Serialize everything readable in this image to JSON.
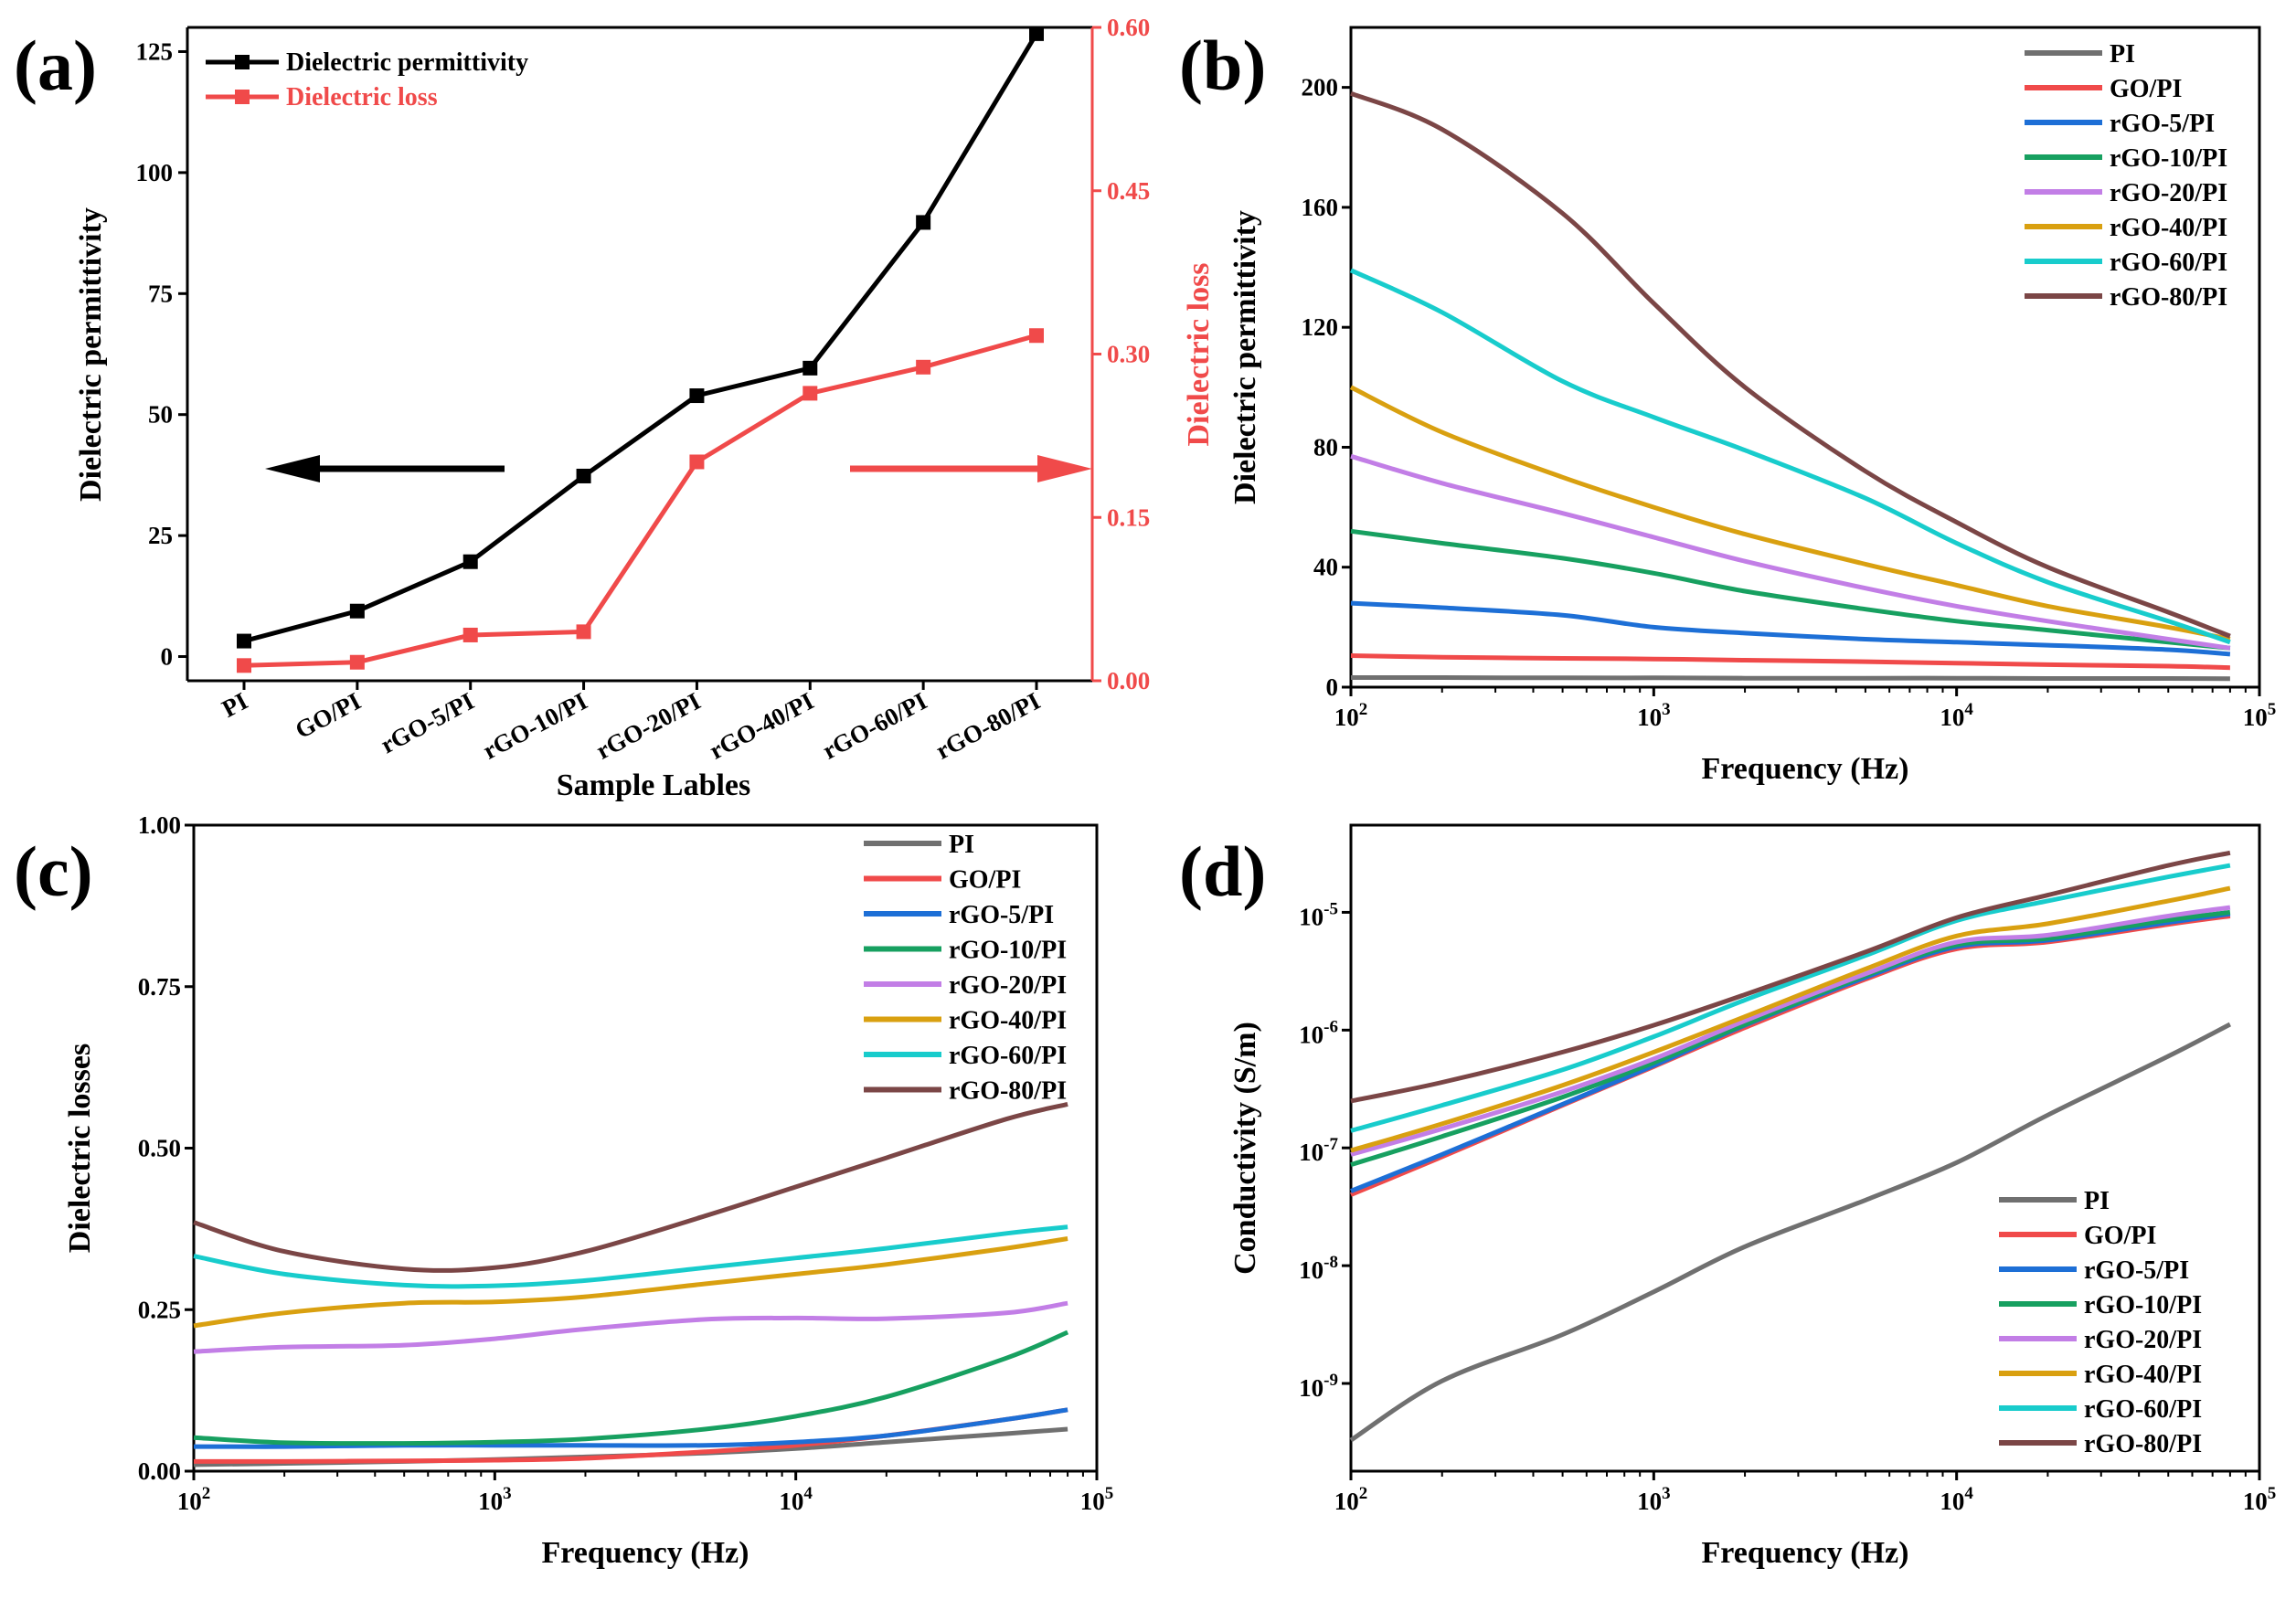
{
  "colors": {
    "PI": "#707070",
    "GO/PI": "#f04a4a",
    "rGO-5/PI": "#1d6fd6",
    "rGO-10/PI": "#17a060",
    "rGO-20/PI": "#c27ee6",
    "rGO-40/PI": "#d9a010",
    "rGO-60/PI": "#18cccc",
    "rGO-80/PI": "#7b4646",
    "black": "#000000",
    "red": "#f04a4a"
  },
  "chart_data": [
    {
      "panel": "(a)",
      "type": "line",
      "categories": [
        "PI",
        "GO/PI",
        "rGO-5/PI",
        "rGO-10/PI",
        "rGO-20/PI",
        "rGO-40/PI",
        "rGO-60/PI",
        "rGO-80/PI"
      ],
      "xlabel": "Sample Lables",
      "ylabel": "Dielectric permittivity",
      "ylabel_right": "Dielectric loss",
      "ylim": [
        -5,
        130
      ],
      "ylim_right": [
        0,
        0.6
      ],
      "yticks": [
        "0",
        "25",
        "50",
        "75",
        "100",
        "125"
      ],
      "yticks_right": [
        "0.00",
        "0.15",
        "0.30",
        "0.45",
        "0.60"
      ],
      "legend": "top-left",
      "series": [
        {
          "name": "Dielectric permittivity",
          "axis": "left",
          "values": [
            3.2,
            9.4,
            19.6,
            37.3,
            53.9,
            59.6,
            89.7,
            128.7
          ]
        },
        {
          "name": "Dielectric loss",
          "axis": "right",
          "values": [
            0.014,
            0.017,
            0.042,
            0.045,
            0.201,
            0.264,
            0.288,
            0.317
          ]
        }
      ]
    },
    {
      "panel": "(b)",
      "type": "line",
      "xscale": "log",
      "xlim": [
        100,
        100000
      ],
      "xticks": [
        {
          "base": "10",
          "exp": "2"
        },
        {
          "base": "10",
          "exp": "3"
        },
        {
          "base": "10",
          "exp": "4"
        },
        {
          "base": "10",
          "exp": "5"
        }
      ],
      "ylim": [
        0,
        220
      ],
      "yticks": [
        "0",
        "40",
        "80",
        "120",
        "160",
        "200"
      ],
      "xlabel": "Frequency (Hz)",
      "ylabel": "Dielectric permittivity",
      "legend": "top-right",
      "x": [
        100,
        200,
        500,
        1000,
        2000,
        5000,
        10000,
        20000,
        50000,
        80000
      ],
      "series": [
        {
          "name": "PI",
          "values": [
            3.2,
            3.2,
            3.1,
            3.1,
            3.0,
            3.0,
            3.0,
            2.9,
            2.9,
            2.8
          ]
        },
        {
          "name": "GO/PI",
          "values": [
            10.5,
            10.0,
            9.6,
            9.4,
            9.0,
            8.5,
            8.0,
            7.5,
            7.0,
            6.5
          ]
        },
        {
          "name": "rGO-5/PI",
          "values": [
            28,
            26.5,
            24,
            20,
            18,
            16,
            15,
            14,
            12.5,
            11
          ]
        },
        {
          "name": "rGO-10/PI",
          "values": [
            52,
            48,
            43,
            38,
            32,
            26,
            22,
            19,
            15,
            13
          ]
        },
        {
          "name": "rGO-20/PI",
          "values": [
            77,
            68,
            58,
            50,
            42,
            33,
            27,
            22,
            16,
            13
          ]
        },
        {
          "name": "rGO-40/PI",
          "values": [
            100,
            85,
            70,
            60,
            51,
            41,
            34,
            27,
            20,
            16
          ]
        },
        {
          "name": "rGO-60/PI",
          "values": [
            139,
            125,
            102,
            90,
            79,
            63,
            48,
            35,
            22,
            15
          ]
        },
        {
          "name": "rGO-80/PI",
          "values": [
            198,
            186,
            158,
            128,
            100,
            72,
            55,
            40,
            25,
            17
          ]
        }
      ]
    },
    {
      "panel": "(c)",
      "type": "line",
      "xscale": "log",
      "xlim": [
        100,
        100000
      ],
      "xticks": [
        {
          "base": "10",
          "exp": "2"
        },
        {
          "base": "10",
          "exp": "3"
        },
        {
          "base": "10",
          "exp": "4"
        },
        {
          "base": "10",
          "exp": "5"
        }
      ],
      "ylim": [
        0,
        1.0
      ],
      "yticks": [
        "0.00",
        "0.25",
        "0.50",
        "0.75",
        "1.00"
      ],
      "xlabel": "Frequency (Hz)",
      "ylabel": "Dielectric losses",
      "legend": "top-right",
      "x": [
        100,
        200,
        500,
        1000,
        2000,
        5000,
        10000,
        20000,
        50000,
        80000
      ],
      "series": [
        {
          "name": "PI",
          "values": [
            0.01,
            0.012,
            0.015,
            0.018,
            0.022,
            0.028,
            0.035,
            0.045,
            0.058,
            0.065
          ]
        },
        {
          "name": "GO/PI",
          "values": [
            0.015,
            0.015,
            0.016,
            0.017,
            0.02,
            0.03,
            0.04,
            0.055,
            0.08,
            0.095
          ]
        },
        {
          "name": "rGO-5/PI",
          "values": [
            0.038,
            0.038,
            0.04,
            0.04,
            0.04,
            0.04,
            0.045,
            0.055,
            0.08,
            0.095
          ]
        },
        {
          "name": "rGO-10/PI",
          "values": [
            0.052,
            0.044,
            0.043,
            0.045,
            0.05,
            0.065,
            0.085,
            0.115,
            0.175,
            0.215
          ]
        },
        {
          "name": "rGO-20/PI",
          "values": [
            0.185,
            0.192,
            0.195,
            0.205,
            0.22,
            0.235,
            0.237,
            0.236,
            0.245,
            0.26
          ]
        },
        {
          "name": "rGO-40/PI",
          "values": [
            0.225,
            0.245,
            0.26,
            0.262,
            0.27,
            0.29,
            0.305,
            0.32,
            0.345,
            0.36
          ]
        },
        {
          "name": "rGO-60/PI",
          "values": [
            0.333,
            0.305,
            0.288,
            0.287,
            0.295,
            0.315,
            0.33,
            0.345,
            0.368,
            0.378
          ]
        },
        {
          "name": "rGO-80/PI",
          "values": [
            0.385,
            0.34,
            0.313,
            0.315,
            0.34,
            0.395,
            0.44,
            0.485,
            0.545,
            0.568
          ]
        }
      ]
    },
    {
      "panel": "(d)",
      "type": "line",
      "xscale": "log",
      "yscale": "log",
      "xlim": [
        100,
        100000
      ],
      "ylim": [
        1.8e-10,
        5.5e-05
      ],
      "xticks": [
        {
          "base": "10",
          "exp": "2"
        },
        {
          "base": "10",
          "exp": "3"
        },
        {
          "base": "10",
          "exp": "4"
        },
        {
          "base": "10",
          "exp": "5"
        }
      ],
      "yticks": [
        {
          "base": "10",
          "exp": "-9"
        },
        {
          "base": "10",
          "exp": "-8"
        },
        {
          "base": "10",
          "exp": "-7"
        },
        {
          "base": "10",
          "exp": "-6"
        },
        {
          "base": "10",
          "exp": "-5"
        }
      ],
      "xlabel": "Frequency (Hz)",
      "ylabel": "Conductivity (S/m)",
      "legend": "bottom-right",
      "x": [
        100,
        200,
        500,
        1000,
        2000,
        5000,
        10000,
        20000,
        50000,
        80000
      ],
      "series": [
        {
          "name": "PI",
          "values": [
            3.3e-10,
            1.05e-09,
            2.6e-09,
            6e-09,
            1.45e-08,
            3.6e-08,
            7.5e-08,
            1.9e-07,
            6e-07,
            1.12e-06
          ]
        },
        {
          "name": "GO/PI",
          "values": [
            4e-08,
            8.4e-08,
            2.3e-07,
            4.9e-07,
            1.05e-06,
            2.7e-06,
            4.9e-06,
            5.6e-06,
            7.9e-06,
            9.3e-06
          ]
        },
        {
          "name": "rGO-5/PI",
          "values": [
            4.3e-08,
            8.8e-08,
            2.35e-07,
            5e-07,
            1.1e-06,
            2.8e-06,
            5.1e-06,
            5.8e-06,
            8.2e-06,
            9.7e-06
          ]
        },
        {
          "name": "rGO-10/PI",
          "values": [
            7.2e-08,
            1.25e-07,
            2.7e-07,
            5.3e-07,
            1.12e-06,
            2.9e-06,
            5.3e-06,
            6e-06,
            8.6e-06,
            1e-05
          ]
        },
        {
          "name": "rGO-20/PI",
          "values": [
            8.8e-08,
            1.45e-07,
            3e-07,
            5.7e-07,
            1.2e-06,
            3e-06,
            5.6e-06,
            6.4e-06,
            9.3e-06,
            1.1e-05
          ]
        },
        {
          "name": "rGO-40/PI",
          "values": [
            9.5e-08,
            1.6e-07,
            3.4e-07,
            6.5e-07,
            1.3e-06,
            3.3e-06,
            6.3e-06,
            8e-06,
            1.25e-05,
            1.6e-05
          ]
        },
        {
          "name": "rGO-60/PI",
          "values": [
            1.4e-07,
            2.3e-07,
            4.6e-07,
            8.8e-07,
            1.8e-06,
            4.3e-06,
            8.5e-06,
            1.25e-05,
            2e-05,
            2.5e-05
          ]
        },
        {
          "name": "rGO-80/PI",
          "values": [
            2.5e-07,
            3.6e-07,
            6.5e-07,
            1.1e-06,
            2e-06,
            4.6e-06,
            9e-06,
            1.4e-05,
            2.5e-05,
            3.2e-05
          ]
        }
      ]
    }
  ]
}
